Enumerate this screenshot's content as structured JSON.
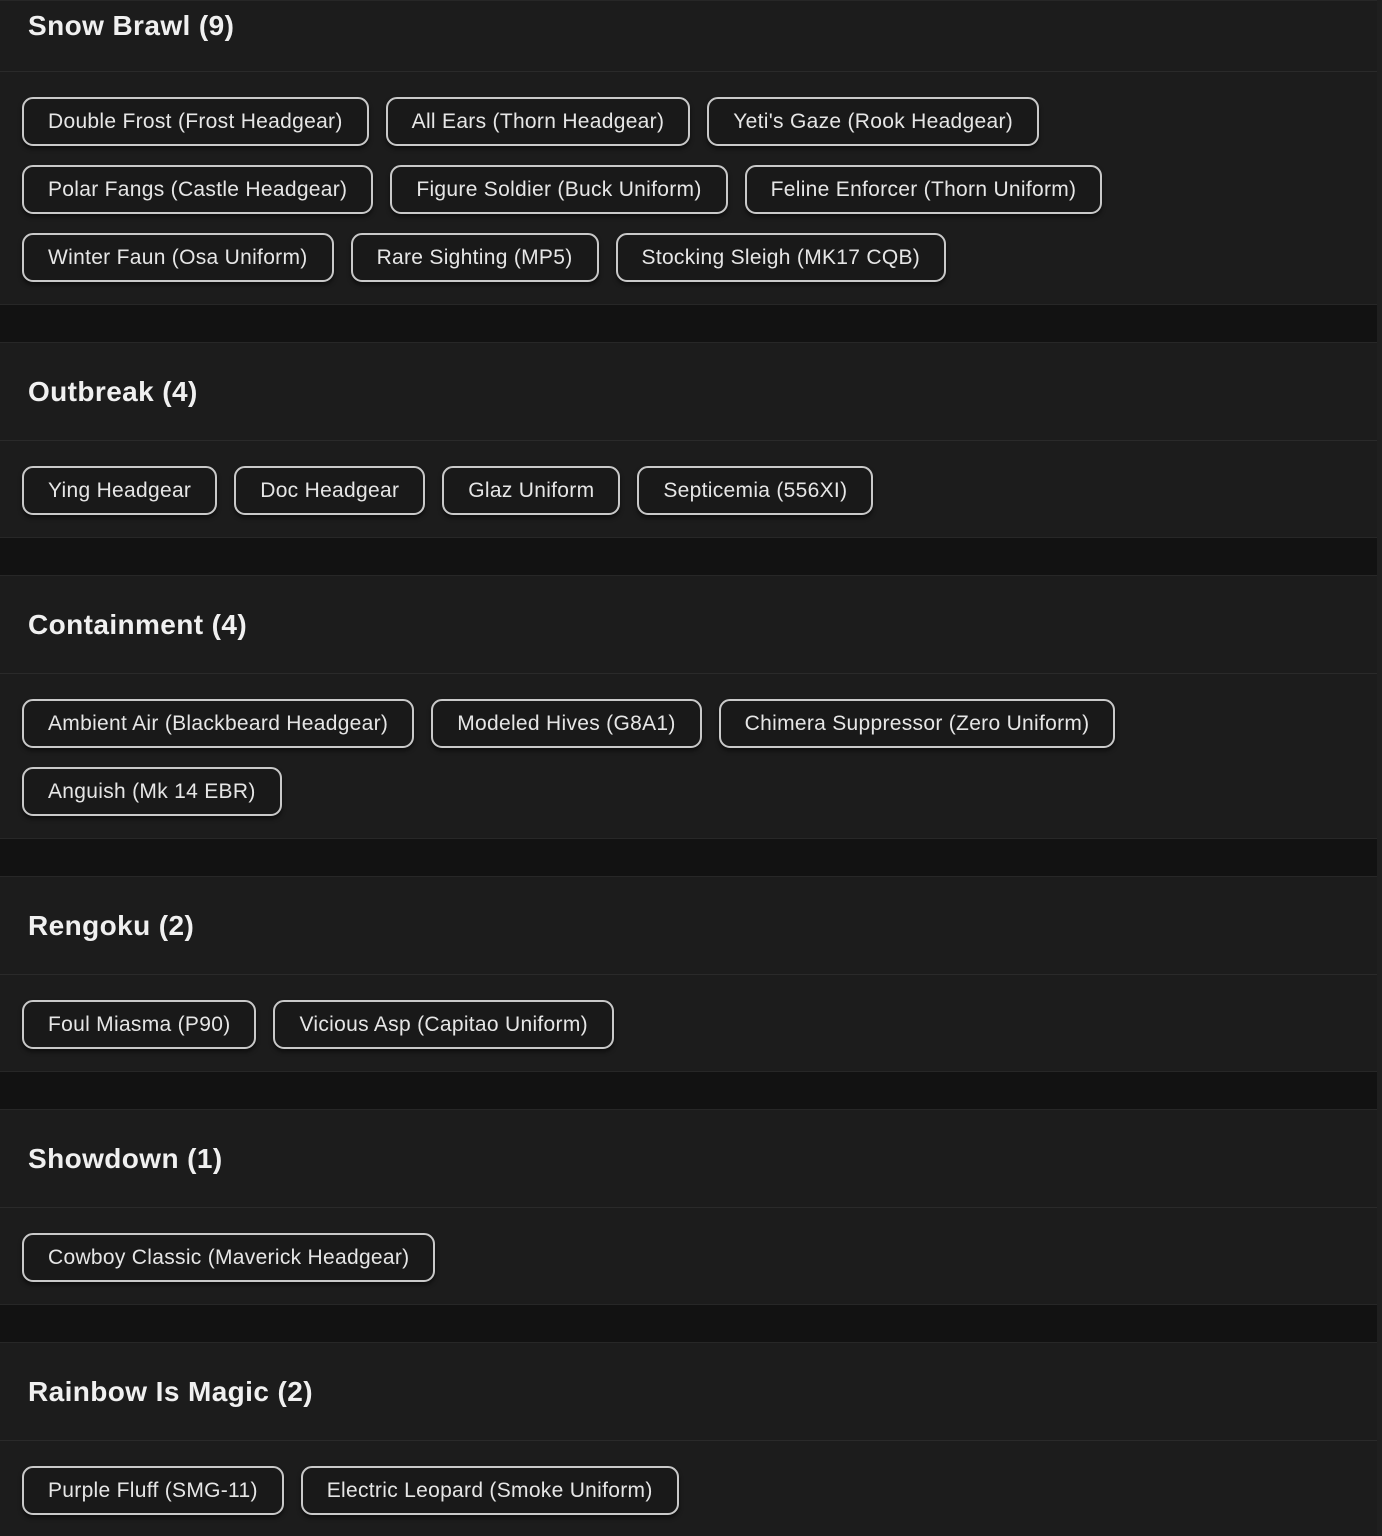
{
  "colors": {
    "page_bg": "#121212",
    "section_bg": "#1c1c1c",
    "section_border": "#272727",
    "header_divider": "#2a2a2a",
    "header_text": "#f0f0f0",
    "chip_bg": "#191919",
    "chip_border": "#c9c9c9",
    "chip_text": "#e6e6e6"
  },
  "sections": [
    {
      "title": "Snow Brawl",
      "count": 9,
      "title_display": "Snow Brawl (9)",
      "items": [
        "Double Frost (Frost Headgear)",
        "All Ears (Thorn Headgear)",
        "Yeti's Gaze (Rook Headgear)",
        "Polar Fangs (Castle Headgear)",
        "Figure Soldier (Buck Uniform)",
        "Feline Enforcer (Thorn Uniform)",
        "Winter Faun (Osa Uniform)",
        "Rare Sighting (MP5)",
        "Stocking Sleigh (MK17 CQB)"
      ]
    },
    {
      "title": "Outbreak",
      "count": 4,
      "title_display": "Outbreak (4)",
      "items": [
        "Ying Headgear",
        "Doc Headgear",
        "Glaz Uniform",
        "Septicemia (556XI)"
      ]
    },
    {
      "title": "Containment",
      "count": 4,
      "title_display": "Containment (4)",
      "items": [
        "Ambient Air (Blackbeard Headgear)",
        "Modeled Hives (G8A1)",
        "Chimera Suppressor (Zero Uniform)",
        "Anguish (Mk 14 EBR)"
      ]
    },
    {
      "title": "Rengoku",
      "count": 2,
      "title_display": "Rengoku (2)",
      "items": [
        "Foul Miasma (P90)",
        "Vicious Asp (Capitao Uniform)"
      ]
    },
    {
      "title": "Showdown",
      "count": 1,
      "title_display": "Showdown (1)",
      "items": [
        "Cowboy Classic (Maverick Headgear)"
      ]
    },
    {
      "title": "Rainbow Is Magic",
      "count": 2,
      "title_display": "Rainbow Is Magic (2)",
      "items": [
        "Purple Fluff (SMG-11)",
        "Electric Leopard (Smoke Uniform)"
      ]
    }
  ]
}
